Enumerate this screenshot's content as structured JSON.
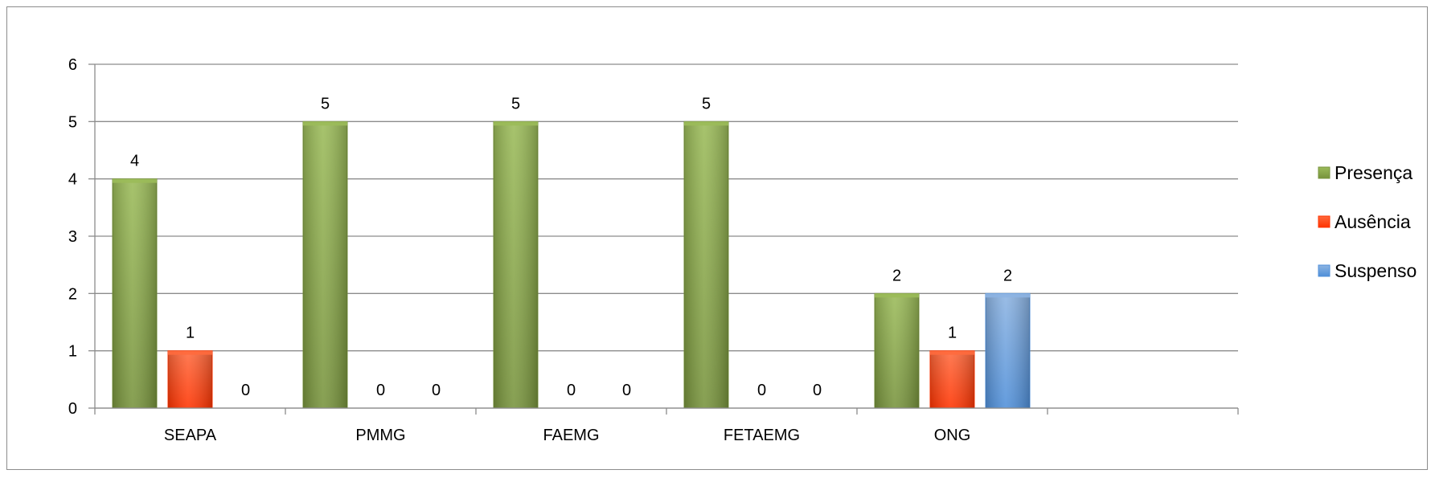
{
  "chart_data": {
    "type": "bar",
    "title": "",
    "xlabel": "",
    "ylabel": "",
    "categories": [
      "SEAPA",
      "PMMG",
      "FAEMG",
      "FETAEMG",
      "ONG"
    ],
    "series": [
      {
        "name": "Presença",
        "values": [
          4,
          5,
          5,
          5,
          2
        ],
        "color": "#77933c",
        "color_light": "#9bbb59"
      },
      {
        "name": "Ausência",
        "values": [
          1,
          0,
          0,
          0,
          1
        ],
        "color": "#ff3300",
        "color_light": "#ff6a3d"
      },
      {
        "name": "Suspenso",
        "values": [
          0,
          0,
          0,
          0,
          2
        ],
        "color": "#4f8fd9",
        "color_light": "#8db4e2"
      }
    ],
    "ylim": [
      0,
      6
    ],
    "yticks": [
      0,
      1,
      2,
      3,
      4,
      5,
      6
    ],
    "grid": true,
    "legend_position": "right",
    "data_labels": true
  }
}
